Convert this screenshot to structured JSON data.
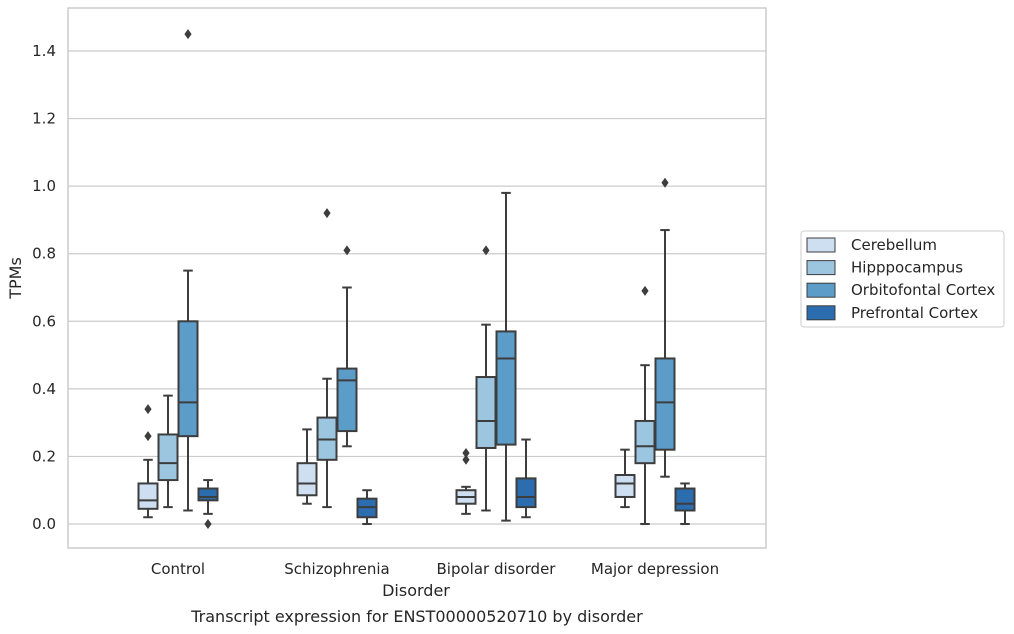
{
  "chart_data": {
    "type": "box",
    "caption": "Transcript expression for ENST00000520710 by disorder",
    "xlabel": "Disorder",
    "ylabel": "TPMs",
    "ylim": [
      -0.07,
      1.53
    ],
    "yticks": [
      "0.0",
      "0.2",
      "0.4",
      "0.6",
      "0.8",
      "1.0",
      "1.2",
      "1.4"
    ],
    "categories": [
      "Control",
      "Schizophrenia",
      "Bipolar disorder",
      "Major depression"
    ],
    "grid": true,
    "legend_position": "right",
    "series": [
      {
        "name": "Cerebellum",
        "color": "#cddff0",
        "boxes": [
          {
            "whislo": 0.02,
            "q1": 0.045,
            "med": 0.07,
            "q3": 0.12,
            "whishi": 0.19,
            "fliers": [
              0.26,
              0.34
            ]
          },
          {
            "whislo": 0.06,
            "q1": 0.085,
            "med": 0.12,
            "q3": 0.18,
            "whishi": 0.28,
            "fliers": []
          },
          {
            "whislo": 0.03,
            "q1": 0.06,
            "med": 0.08,
            "q3": 0.1,
            "whishi": 0.11,
            "fliers": [
              0.19,
              0.21
            ]
          },
          {
            "whislo": 0.05,
            "q1": 0.08,
            "med": 0.12,
            "q3": 0.145,
            "whishi": 0.22,
            "fliers": []
          }
        ]
      },
      {
        "name": "Hipppocampus",
        "color": "#9cc5df",
        "boxes": [
          {
            "whislo": 0.05,
            "q1": 0.13,
            "med": 0.18,
            "q3": 0.265,
            "whishi": 0.38,
            "fliers": []
          },
          {
            "whislo": 0.05,
            "q1": 0.19,
            "med": 0.25,
            "q3": 0.315,
            "whishi": 0.43,
            "fliers": [
              0.92
            ]
          },
          {
            "whislo": 0.04,
            "q1": 0.225,
            "med": 0.305,
            "q3": 0.435,
            "whishi": 0.59,
            "fliers": [
              0.81
            ]
          },
          {
            "whislo": 0.0,
            "q1": 0.18,
            "med": 0.23,
            "q3": 0.305,
            "whishi": 0.47,
            "fliers": [
              0.69
            ]
          }
        ]
      },
      {
        "name": "Orbitofontal Cortex",
        "color": "#5b9cc9",
        "boxes": [
          {
            "whislo": 0.04,
            "q1": 0.26,
            "med": 0.36,
            "q3": 0.6,
            "whishi": 0.75,
            "fliers": [
              1.45
            ]
          },
          {
            "whislo": 0.23,
            "q1": 0.275,
            "med": 0.425,
            "q3": 0.46,
            "whishi": 0.7,
            "fliers": [
              0.81
            ]
          },
          {
            "whislo": 0.01,
            "q1": 0.235,
            "med": 0.49,
            "q3": 0.57,
            "whishi": 0.98,
            "fliers": []
          },
          {
            "whislo": 0.14,
            "q1": 0.22,
            "med": 0.36,
            "q3": 0.49,
            "whishi": 0.87,
            "fliers": [
              1.01
            ]
          }
        ]
      },
      {
        "name": "Prefrontal Cortex",
        "color": "#2b6daf",
        "boxes": [
          {
            "whislo": 0.03,
            "q1": 0.07,
            "med": 0.08,
            "q3": 0.105,
            "whishi": 0.13,
            "fliers": [
              0.0
            ]
          },
          {
            "whislo": 0.0,
            "q1": 0.02,
            "med": 0.05,
            "q3": 0.075,
            "whishi": 0.1,
            "fliers": []
          },
          {
            "whislo": 0.02,
            "q1": 0.05,
            "med": 0.08,
            "q3": 0.135,
            "whishi": 0.25,
            "fliers": []
          },
          {
            "whislo": 0.0,
            "q1": 0.04,
            "med": 0.06,
            "q3": 0.105,
            "whishi": 0.12,
            "fliers": []
          }
        ]
      }
    ]
  }
}
